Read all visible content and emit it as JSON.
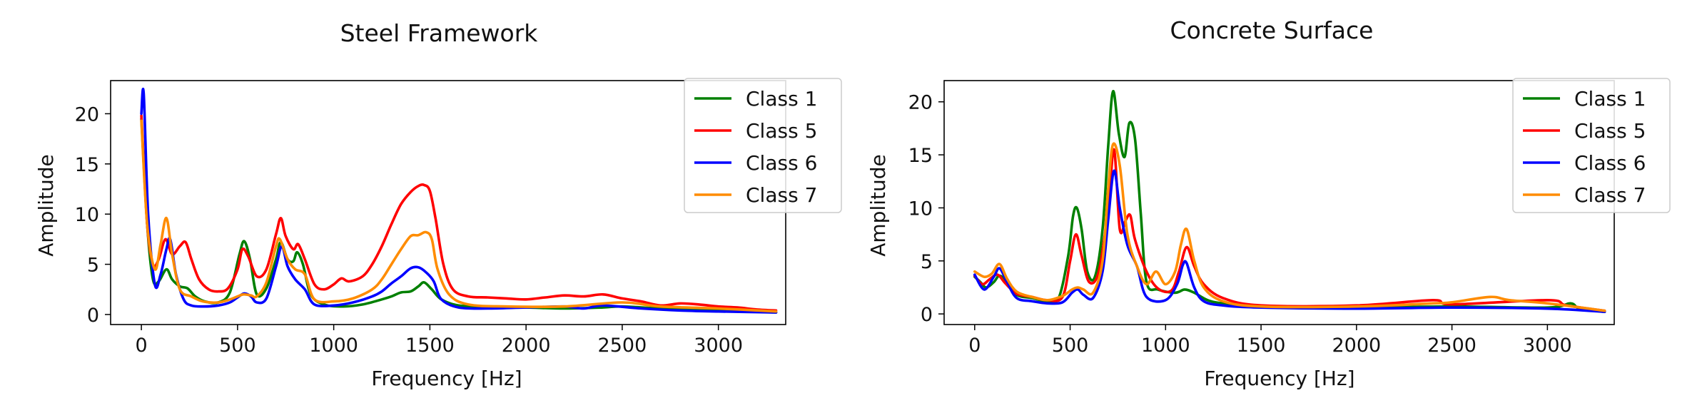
{
  "chart_data": [
    {
      "type": "line",
      "title": "Steel Framework",
      "xlabel": "Frequency [Hz]",
      "ylabel": "Amplitude",
      "xlim": [
        -160,
        3350
      ],
      "ylim": [
        -1,
        23.3
      ],
      "xticks": [
        0,
        500,
        1000,
        1500,
        2000,
        2500,
        3000
      ],
      "yticks": [
        0,
        5,
        10,
        15,
        20
      ],
      "grid": false,
      "legend": "top-right",
      "series": [
        {
          "name": "Class 1",
          "color": "#008000",
          "x": [
            0,
            30,
            60,
            90,
            130,
            160,
            200,
            240,
            280,
            330,
            400,
            460,
            510,
            535,
            565,
            600,
            650,
            700,
            725,
            760,
            790,
            810,
            840,
            880,
            950,
            1050,
            1150,
            1250,
            1300,
            1350,
            1400,
            1440,
            1470,
            1510,
            1560,
            1650,
            1800,
            2000,
            2200,
            2400,
            2500,
            2700,
            3000,
            3300
          ],
          "y": [
            19.5,
            9,
            3.5,
            3.3,
            4.5,
            3.5,
            2.8,
            2.6,
            1.8,
            1.3,
            1.2,
            2.2,
            6.0,
            7.3,
            5.5,
            2.0,
            2.6,
            5.5,
            7.2,
            5.5,
            5.3,
            6.2,
            5.0,
            2.0,
            1.0,
            0.8,
            1.0,
            1.5,
            1.8,
            2.2,
            2.3,
            2.8,
            3.2,
            2.5,
            1.5,
            0.9,
            0.8,
            0.7,
            0.6,
            0.7,
            0.8,
            0.6,
            0.4,
            0.2
          ]
        },
        {
          "name": "Class 5",
          "color": "#ff0000",
          "x": [
            0,
            30,
            60,
            90,
            125,
            160,
            200,
            230,
            260,
            300,
            350,
            400,
            450,
            500,
            525,
            555,
            600,
            650,
            700,
            725,
            750,
            790,
            815,
            850,
            900,
            950,
            1000,
            1040,
            1080,
            1150,
            1200,
            1250,
            1300,
            1350,
            1400,
            1440,
            1470,
            1500,
            1530,
            1570,
            1620,
            1700,
            1800,
            1900,
            2000,
            2100,
            2200,
            2300,
            2400,
            2500,
            2600,
            2700,
            2800,
            2900,
            3000,
            3100,
            3200,
            3300
          ],
          "y": [
            19.8,
            9,
            5,
            5.5,
            7.5,
            6.0,
            6.8,
            7.2,
            5.5,
            3.5,
            2.5,
            2.3,
            2.6,
            4.5,
            6.5,
            5.8,
            3.8,
            4.5,
            8.0,
            9.6,
            7.8,
            6.5,
            7.0,
            5.5,
            3.0,
            2.5,
            3.0,
            3.6,
            3.3,
            3.8,
            5.0,
            6.8,
            9.0,
            11.0,
            12.2,
            12.8,
            12.9,
            12.3,
            9.5,
            5.0,
            2.5,
            1.8,
            1.7,
            1.6,
            1.5,
            1.7,
            1.9,
            1.8,
            2.0,
            1.6,
            1.3,
            0.9,
            1.1,
            1.0,
            0.8,
            0.7,
            0.5,
            0.4
          ]
        },
        {
          "name": "Class 6",
          "color": "#0000ff",
          "x": [
            0,
            12,
            35,
            70,
            100,
            130,
            150,
            180,
            220,
            260,
            320,
            400,
            460,
            500,
            535,
            570,
            600,
            650,
            700,
            730,
            760,
            800,
            850,
            900,
            1000,
            1100,
            1200,
            1250,
            1300,
            1350,
            1400,
            1440,
            1480,
            1520,
            1560,
            1650,
            1800,
            2000,
            2200,
            2300,
            2400,
            2600,
            2800,
            3000,
            3300
          ],
          "y": [
            20,
            22,
            10,
            3.0,
            4.0,
            6.5,
            7.5,
            4.0,
            1.5,
            0.9,
            0.8,
            0.9,
            1.2,
            1.7,
            2.1,
            1.8,
            1.2,
            1.6,
            4.8,
            6.8,
            4.8,
            3.5,
            2.5,
            1.0,
            0.9,
            1.2,
            1.8,
            2.3,
            3.1,
            3.8,
            4.6,
            4.7,
            4.2,
            3.3,
            1.5,
            0.7,
            0.6,
            0.7,
            0.8,
            0.6,
            0.9,
            0.6,
            0.4,
            0.3,
            0.2
          ]
        },
        {
          "name": "Class 7",
          "color": "#ff8c00",
          "x": [
            0,
            30,
            70,
            100,
            130,
            160,
            200,
            260,
            320,
            400,
            460,
            500,
            530,
            570,
            600,
            650,
            700,
            720,
            760,
            800,
            850,
            900,
            1000,
            1100,
            1200,
            1250,
            1300,
            1350,
            1400,
            1440,
            1480,
            1510,
            1540,
            1600,
            1700,
            1900,
            2200,
            2500,
            2700,
            3000,
            3300
          ],
          "y": [
            19.3,
            9,
            4.5,
            7.0,
            9.6,
            6.0,
            2.5,
            1.8,
            1.3,
            1.2,
            1.5,
            1.8,
            2.0,
            1.9,
            1.8,
            3.2,
            6.8,
            7.5,
            5.5,
            4.5,
            4.0,
            1.5,
            1.3,
            1.6,
            2.5,
            3.5,
            5.0,
            6.5,
            7.8,
            7.9,
            8.2,
            7.5,
            4.5,
            2.0,
            1.0,
            0.8,
            0.8,
            1.2,
            0.8,
            0.6,
            0.3
          ]
        }
      ]
    },
    {
      "type": "line",
      "title": "Concrete Surface",
      "xlabel": "Frequency [Hz]",
      "ylabel": "Amplitude",
      "xlim": [
        -160,
        3350
      ],
      "ylim": [
        -1,
        22
      ],
      "xticks": [
        0,
        500,
        1000,
        1500,
        2000,
        2500,
        3000
      ],
      "yticks": [
        0,
        5,
        10,
        15,
        20
      ],
      "grid": false,
      "legend": "top-right",
      "series": [
        {
          "name": "Class 1",
          "color": "#008000",
          "x": [
            0,
            30,
            60,
            100,
            130,
            170,
            220,
            300,
            380,
            440,
            490,
            515,
            535,
            560,
            590,
            630,
            670,
            700,
            725,
            755,
            785,
            810,
            840,
            870,
            900,
            960,
            1050,
            1100,
            1150,
            1220,
            1300,
            1500,
            2000,
            2500,
            3000,
            3120,
            3170,
            3300
          ],
          "y": [
            3.5,
            3.0,
            2.5,
            3.0,
            3.6,
            3.0,
            1.8,
            1.5,
            1.2,
            1.5,
            5.5,
            9.2,
            10.0,
            8.0,
            4.0,
            3.5,
            8.0,
            16.0,
            21.0,
            17.0,
            14.8,
            18.0,
            16.5,
            9.5,
            3.0,
            2.3,
            2.0,
            2.3,
            2.0,
            1.3,
            1.0,
            0.7,
            0.6,
            0.7,
            0.6,
            1.0,
            0.5,
            0.2
          ]
        },
        {
          "name": "Class 5",
          "color": "#ff0000",
          "x": [
            0,
            40,
            80,
            120,
            160,
            220,
            300,
            380,
            460,
            500,
            530,
            560,
            600,
            650,
            700,
            730,
            760,
            790,
            815,
            840,
            900,
            960,
            1030,
            1070,
            1110,
            1150,
            1200,
            1300,
            1500,
            2000,
            2400,
            2500,
            3000,
            3100,
            3300
          ],
          "y": [
            3.6,
            2.8,
            3.3,
            3.7,
            2.9,
            1.9,
            1.6,
            1.3,
            1.6,
            5.0,
            7.5,
            5.5,
            3.0,
            4.0,
            10.0,
            15.5,
            8.0,
            8.8,
            9.3,
            7.0,
            4.0,
            2.4,
            2.2,
            4.0,
            6.3,
            4.5,
            2.8,
            1.5,
            0.8,
            0.8,
            1.3,
            0.9,
            1.3,
            0.8,
            0.3
          ]
        },
        {
          "name": "Class 6",
          "color": "#0000ff",
          "x": [
            0,
            50,
            100,
            130,
            170,
            220,
            300,
            380,
            460,
            510,
            540,
            570,
            620,
            670,
            700,
            730,
            760,
            800,
            850,
            900,
            1000,
            1060,
            1090,
            1110,
            1150,
            1200,
            1300,
            1500,
            2000,
            2500,
            3000,
            3300
          ],
          "y": [
            3.7,
            2.3,
            3.5,
            4.3,
            3.0,
            1.5,
            1.2,
            1.0,
            1.1,
            2.0,
            2.3,
            1.8,
            1.5,
            4.0,
            9.0,
            13.5,
            10.0,
            6.5,
            4.5,
            1.6,
            1.3,
            2.8,
            4.6,
            4.8,
            2.5,
            1.2,
            0.8,
            0.6,
            0.5,
            0.6,
            0.5,
            0.2
          ]
        },
        {
          "name": "Class 7",
          "color": "#ff8c00",
          "x": [
            0,
            50,
            90,
            130,
            170,
            220,
            300,
            380,
            460,
            510,
            540,
            570,
            620,
            670,
            700,
            725,
            760,
            800,
            850,
            900,
            950,
            1000,
            1050,
            1080,
            1110,
            1150,
            1200,
            1300,
            1500,
            2000,
            2400,
            2500,
            2700,
            2800,
            3000,
            3300
          ],
          "y": [
            4.0,
            3.5,
            3.8,
            4.7,
            3.3,
            2.1,
            1.6,
            1.3,
            1.7,
            2.3,
            2.5,
            2.3,
            2.0,
            5.0,
            12.0,
            16.0,
            14.0,
            7.5,
            4.5,
            2.8,
            4.0,
            2.8,
            4.0,
            6.5,
            8.0,
            5.0,
            2.5,
            1.2,
            0.7,
            0.7,
            1.0,
            1.1,
            1.6,
            1.3,
            1.0,
            0.3
          ]
        }
      ]
    }
  ]
}
